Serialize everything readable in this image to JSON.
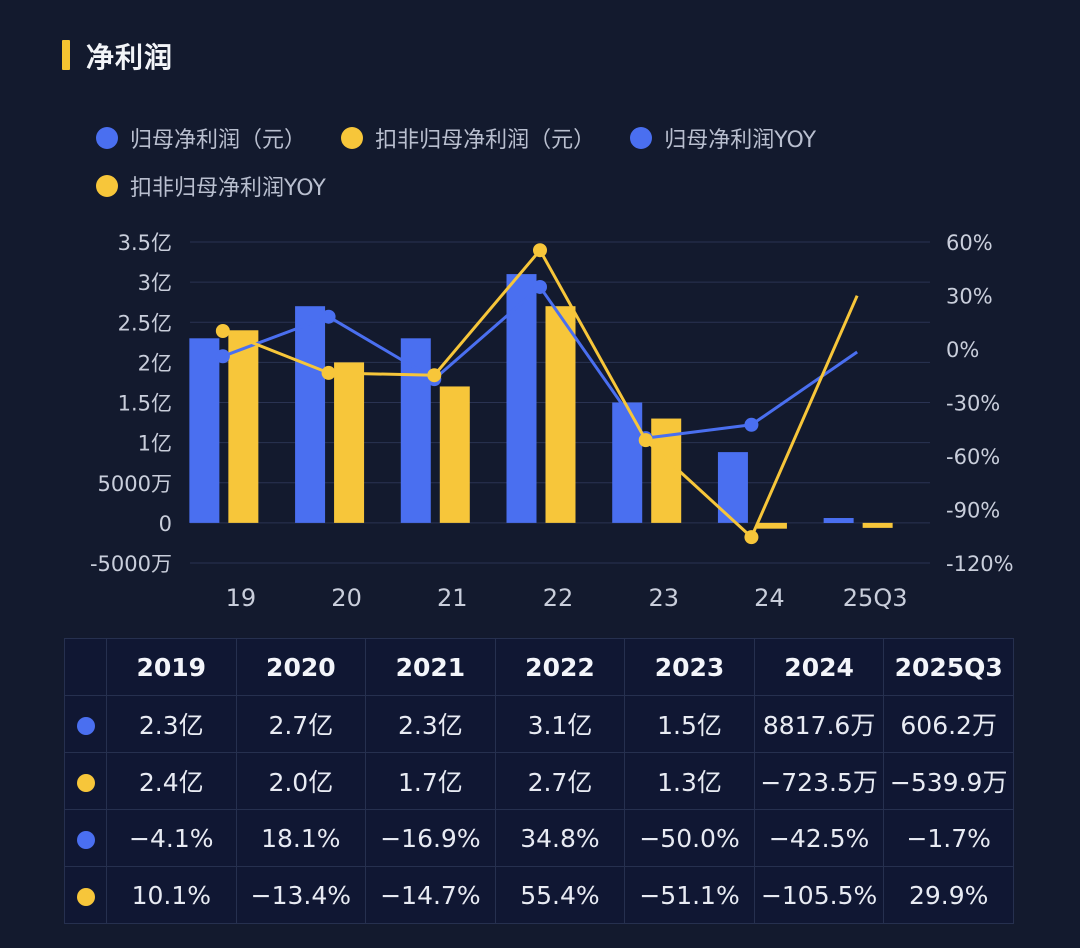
{
  "header": {
    "title": "净利润"
  },
  "colors": {
    "blue": "#4a6ff0",
    "yellow": "#f7c63a",
    "grid": "#2a3352"
  },
  "legend": [
    {
      "label": "归母净利润（元）",
      "color": "#4a6ff0"
    },
    {
      "label": "扣非归母净利润（元）",
      "color": "#f7c63a"
    },
    {
      "label": "归母净利润YOY",
      "color": "#4a6ff0"
    },
    {
      "label": "扣非归母净利润YOY",
      "color": "#f7c63a"
    }
  ],
  "chart_data": {
    "type": "bar",
    "title": "净利润",
    "categories": [
      "19",
      "20",
      "21",
      "22",
      "23",
      "24",
      "25Q3"
    ],
    "left_axis": {
      "ylim": [
        -5000,
        35000
      ],
      "ticks": [
        35000,
        30000,
        25000,
        20000,
        15000,
        10000,
        5000,
        0,
        -5000
      ],
      "tick_labels": [
        "3.5亿",
        "3亿",
        "2.5亿",
        "2亿",
        "1.5亿",
        "1亿",
        "5000万",
        "0",
        "-5000万"
      ],
      "unit": "万元"
    },
    "right_axis": {
      "ylim": [
        -120,
        60
      ],
      "ticks": [
        60,
        30,
        0,
        -30,
        -60,
        -90,
        -120
      ],
      "tick_labels": [
        "60%",
        "30%",
        "0%",
        "-30%",
        "-60%",
        "-90%",
        "-120%"
      ],
      "unit": "%"
    },
    "series": [
      {
        "name": "归母净利润（元）",
        "type": "bar",
        "axis": "left",
        "color": "#4a6ff0",
        "values": [
          23000,
          27000,
          23000,
          31000,
          15000,
          8817.6,
          606.2
        ]
      },
      {
        "name": "扣非归母净利润（元）",
        "type": "bar",
        "axis": "left",
        "color": "#f7c63a",
        "values": [
          24000,
          20000,
          17000,
          27000,
          13000,
          -723.5,
          -539.9
        ]
      },
      {
        "name": "归母净利润YOY",
        "type": "line",
        "axis": "right",
        "color": "#4a6ff0",
        "values": [
          -4.1,
          18.1,
          -16.9,
          34.8,
          -50.0,
          -42.5,
          -1.7
        ]
      },
      {
        "name": "扣非归母净利润YOY",
        "type": "line",
        "axis": "right",
        "color": "#f7c63a",
        "values": [
          10.1,
          -13.4,
          -14.7,
          55.4,
          -51.1,
          -105.5,
          29.9
        ]
      }
    ]
  },
  "table": {
    "headers": [
      "",
      "2019",
      "2020",
      "2021",
      "2022",
      "2023",
      "2024",
      "2025Q3"
    ],
    "rows": [
      {
        "color": "#4a6ff0",
        "cells": [
          "2.3亿",
          "2.7亿",
          "2.3亿",
          "3.1亿",
          "1.5亿",
          "8817.6万",
          "606.2万"
        ]
      },
      {
        "color": "#f7c63a",
        "cells": [
          "2.4亿",
          "2.0亿",
          "1.7亿",
          "2.7亿",
          "1.3亿",
          "−723.5万",
          "−539.9万"
        ]
      },
      {
        "color": "#4a6ff0",
        "cells": [
          "−4.1%",
          "18.1%",
          "−16.9%",
          "34.8%",
          "−50.0%",
          "−42.5%",
          "−1.7%"
        ]
      },
      {
        "color": "#f7c63a",
        "cells": [
          "10.1%",
          "−13.4%",
          "−14.7%",
          "55.4%",
          "−51.1%",
          "−105.5%",
          "29.9%"
        ]
      }
    ]
  }
}
